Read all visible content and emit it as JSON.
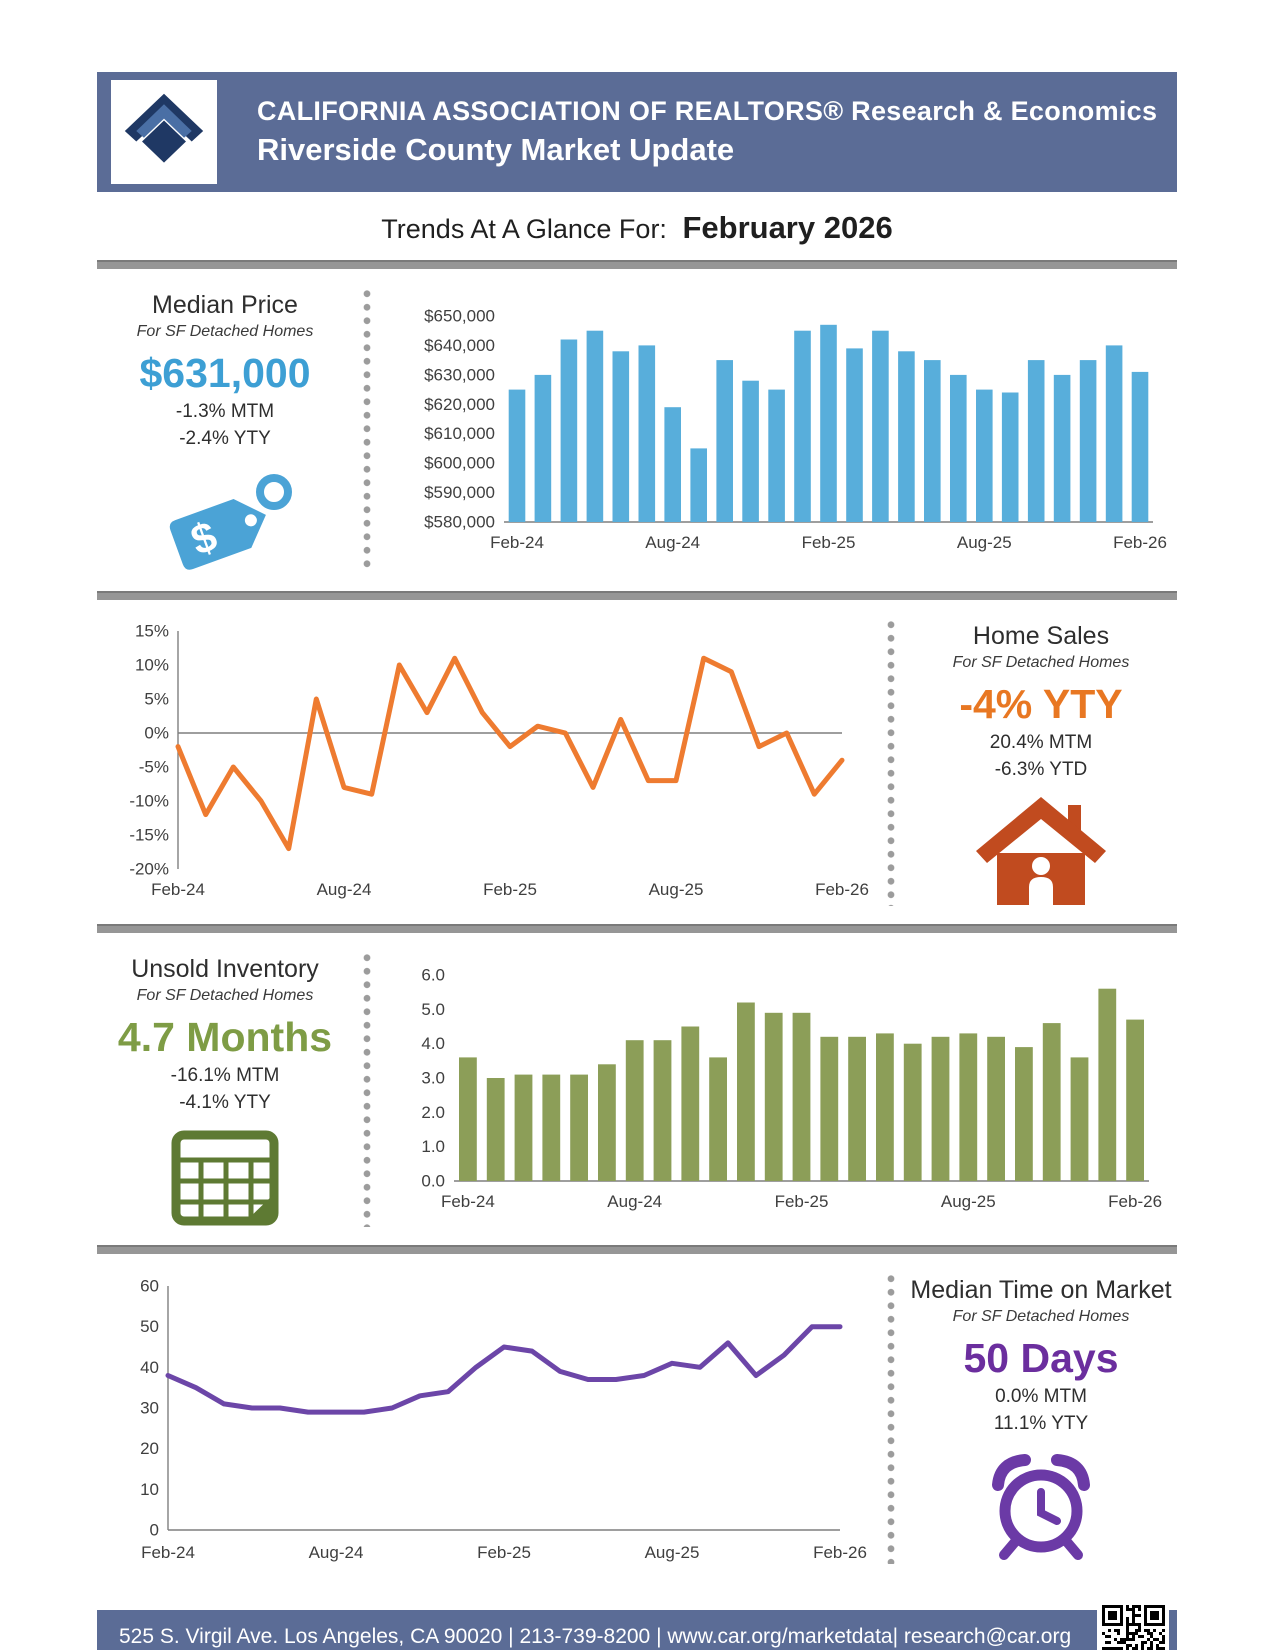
{
  "header": {
    "org_line": "CALIFORNIA ASSOCIATION OF REALTORS® Research & Economics",
    "title": "Riverside County Market Update"
  },
  "subtitle": {
    "prefix": "Trends At A Glance For:",
    "period": "February 2026"
  },
  "sections": {
    "median_price": {
      "title": "Median Price",
      "subtitle": "For SF Detached Homes",
      "value": "$631,000",
      "stat1": "-1.3% MTM",
      "stat2": "-2.4% YTY",
      "accent": "#3D9FD4",
      "icon": "price-tag-icon"
    },
    "home_sales": {
      "title": "Home Sales",
      "subtitle": "For SF Detached Homes",
      "value": "-4% YTY",
      "stat1": "20.4% MTM",
      "stat2": "-6.3% YTD",
      "accent": "#E87722",
      "icon": "house-icon"
    },
    "unsold_inventory": {
      "title": "Unsold Inventory",
      "subtitle": "For SF Detached Homes",
      "value": "4.7 Months",
      "stat1": "-16.1% MTM",
      "stat2": "-4.1% YTY",
      "accent": "#7E9C45",
      "icon": "calendar-grid-icon"
    },
    "median_time": {
      "title": "Median Time on Market",
      "subtitle": "For SF Detached Homes",
      "value": "50 Days",
      "stat1": "0.0% MTM",
      "stat2": "11.1% YTY",
      "accent": "#6B2E9E",
      "icon": "alarm-clock-icon"
    }
  },
  "footer": {
    "text": "525 S. Virgil Ave. Los Angeles, CA 90020  |  213-739-8200  |  www.car.org/marketdata|  research@car.org"
  },
  "chart_data": [
    {
      "id": "median_price_chart",
      "type": "bar",
      "title": "Median Price",
      "ylabel": "",
      "xlabel": "",
      "color": "#58AEDB",
      "categories": [
        "Feb-24",
        "Mar-24",
        "Apr-24",
        "May-24",
        "Jun-24",
        "Jul-24",
        "Aug-24",
        "Sep-24",
        "Oct-24",
        "Nov-24",
        "Dec-24",
        "Jan-25",
        "Feb-25",
        "Mar-25",
        "Apr-25",
        "May-25",
        "Jun-25",
        "Jul-25",
        "Aug-25",
        "Sep-25",
        "Oct-25",
        "Nov-25",
        "Dec-25",
        "Jan-26",
        "Feb-26"
      ],
      "values": [
        625000,
        630000,
        642000,
        645000,
        638000,
        640000,
        619000,
        605000,
        635000,
        628000,
        625000,
        645000,
        647000,
        639000,
        645000,
        638000,
        635000,
        630000,
        625000,
        624000,
        635000,
        630000,
        635000,
        640000,
        631000
      ],
      "ylim": [
        580000,
        650000
      ],
      "ystep": 10000,
      "yfmt": "usd",
      "xtick_labels": [
        "Feb-24",
        "Aug-24",
        "Feb-25",
        "Aug-25",
        "Feb-26"
      ],
      "xtick_index": [
        0,
        6,
        12,
        18,
        24
      ],
      "grid": false,
      "legend": "none"
    },
    {
      "id": "home_sales_chart",
      "type": "line",
      "title": "Home Sales YTY % Change",
      "ylabel": "",
      "xlabel": "",
      "color": "#EE7B30",
      "categories": [
        "Feb-24",
        "Mar-24",
        "Apr-24",
        "May-24",
        "Jun-24",
        "Jul-24",
        "Aug-24",
        "Sep-24",
        "Oct-24",
        "Nov-24",
        "Dec-24",
        "Jan-25",
        "Feb-25",
        "Mar-25",
        "Apr-25",
        "May-25",
        "Jun-25",
        "Jul-25",
        "Aug-25",
        "Sep-25",
        "Oct-25",
        "Nov-25",
        "Dec-25",
        "Jan-26",
        "Feb-26"
      ],
      "values": [
        -2,
        -12,
        -5,
        -10,
        -17,
        5,
        -8,
        -9,
        10,
        3,
        11,
        3,
        -2,
        1,
        0,
        -8,
        2,
        -7,
        -7,
        11,
        9,
        -2,
        0,
        -9,
        -4
      ],
      "ylim": [
        -20,
        15
      ],
      "ystep": 5,
      "yfmt": "pct",
      "xtick_labels": [
        "Feb-24",
        "Aug-24",
        "Feb-25",
        "Aug-25",
        "Feb-26"
      ],
      "xtick_index": [
        0,
        6,
        12,
        18,
        24
      ],
      "grid": false,
      "legend": "none"
    },
    {
      "id": "unsold_inventory_chart",
      "type": "bar",
      "title": "Unsold Inventory (Months)",
      "ylabel": "",
      "xlabel": "",
      "color": "#8C9E58",
      "categories": [
        "Feb-24",
        "Mar-24",
        "Apr-24",
        "May-24",
        "Jun-24",
        "Jul-24",
        "Aug-24",
        "Sep-24",
        "Oct-24",
        "Nov-24",
        "Dec-24",
        "Jan-25",
        "Feb-25",
        "Mar-25",
        "Apr-25",
        "May-25",
        "Jun-25",
        "Jul-25",
        "Aug-25",
        "Sep-25",
        "Oct-25",
        "Nov-25",
        "Dec-25",
        "Jan-26",
        "Feb-26"
      ],
      "values": [
        3.6,
        3.0,
        3.1,
        3.1,
        3.1,
        3.4,
        4.1,
        4.1,
        4.5,
        3.6,
        5.2,
        4.9,
        4.9,
        4.2,
        4.2,
        4.3,
        4.0,
        4.2,
        4.3,
        4.2,
        3.9,
        4.6,
        3.6,
        5.6,
        4.7
      ],
      "ylim": [
        0,
        6
      ],
      "ystep": 1,
      "yfmt": "1dp",
      "xtick_labels": [
        "Feb-24",
        "Aug-24",
        "Feb-25",
        "Aug-25",
        "Feb-26"
      ],
      "xtick_index": [
        0,
        6,
        12,
        18,
        24
      ],
      "grid": false,
      "legend": "none"
    },
    {
      "id": "median_time_chart",
      "type": "line",
      "title": "Median Time on Market (Days)",
      "ylabel": "",
      "xlabel": "",
      "color": "#6C46A8",
      "categories": [
        "Feb-24",
        "Mar-24",
        "Apr-24",
        "May-24",
        "Jun-24",
        "Jul-24",
        "Aug-24",
        "Sep-24",
        "Oct-24",
        "Nov-24",
        "Dec-24",
        "Jan-25",
        "Feb-25",
        "Mar-25",
        "Apr-25",
        "May-25",
        "Jun-25",
        "Jul-25",
        "Aug-25",
        "Sep-25",
        "Oct-25",
        "Nov-25",
        "Dec-25",
        "Jan-26",
        "Feb-26"
      ],
      "values": [
        38,
        35,
        31,
        30,
        30,
        29,
        29,
        29,
        30,
        33,
        34,
        40,
        45,
        44,
        39,
        37,
        37,
        38,
        41,
        40,
        46,
        38,
        43,
        50,
        50
      ],
      "ylim": [
        0,
        60
      ],
      "ystep": 10,
      "yfmt": "int",
      "xtick_labels": [
        "Feb-24",
        "Aug-24",
        "Feb-25",
        "Aug-25",
        "Feb-26"
      ],
      "xtick_index": [
        0,
        6,
        12,
        18,
        24
      ],
      "grid": false,
      "legend": "none"
    }
  ]
}
